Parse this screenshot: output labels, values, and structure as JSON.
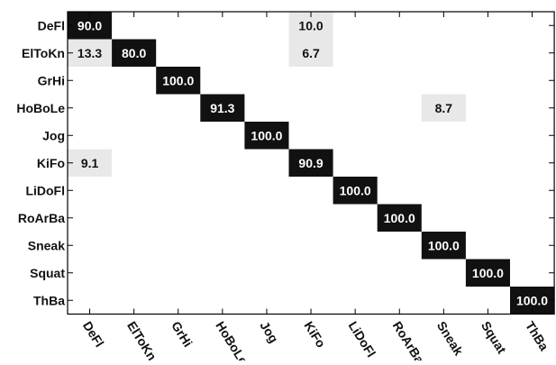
{
  "chart_data": {
    "type": "heatmap",
    "title": "",
    "xlabel": "",
    "ylabel": "",
    "rows": [
      "DeFl",
      "ElToKn",
      "GrHi",
      "HoBoLe",
      "Jog",
      "KiFo",
      "LiDoFl",
      "RoArBa",
      "Sneak",
      "Squat",
      "ThBa"
    ],
    "columns": [
      "DeFl",
      "ElToKn",
      "GrHi",
      "HoBoLe",
      "Jog",
      "KiFo",
      "LiDoFl",
      "RoArBa",
      "Sneak",
      "Squat",
      "ThBa"
    ],
    "cells": [
      {
        "row": 0,
        "col": 0,
        "value": 90.0,
        "label": "90.0"
      },
      {
        "row": 0,
        "col": 5,
        "value": 10.0,
        "label": "10.0"
      },
      {
        "row": 1,
        "col": 0,
        "value": 13.3,
        "label": "13.3"
      },
      {
        "row": 1,
        "col": 1,
        "value": 80.0,
        "label": "80.0"
      },
      {
        "row": 1,
        "col": 5,
        "value": 6.7,
        "label": "6.7"
      },
      {
        "row": 2,
        "col": 2,
        "value": 100.0,
        "label": "100.0"
      },
      {
        "row": 3,
        "col": 3,
        "value": 91.3,
        "label": "91.3"
      },
      {
        "row": 3,
        "col": 8,
        "value": 8.7,
        "label": "8.7"
      },
      {
        "row": 4,
        "col": 4,
        "value": 100.0,
        "label": "100.0"
      },
      {
        "row": 5,
        "col": 0,
        "value": 9.1,
        "label": "9.1"
      },
      {
        "row": 5,
        "col": 5,
        "value": 90.9,
        "label": "90.9"
      },
      {
        "row": 6,
        "col": 6,
        "value": 100.0,
        "label": "100.0"
      },
      {
        "row": 7,
        "col": 7,
        "value": 100.0,
        "label": "100.0"
      },
      {
        "row": 8,
        "col": 8,
        "value": 100.0,
        "label": "100.0"
      },
      {
        "row": 9,
        "col": 9,
        "value": 100.0,
        "label": "100.0"
      },
      {
        "row": 10,
        "col": 10,
        "value": 100.0,
        "label": "100.0"
      }
    ],
    "value_range": [
      0,
      100
    ],
    "colors": {
      "high": "#111111",
      "low": "#e8e8e8",
      "text_on_dark": "#ffffff",
      "text_on_light": "#111111",
      "axis": "#000000"
    },
    "grid": false,
    "legend": "none"
  }
}
